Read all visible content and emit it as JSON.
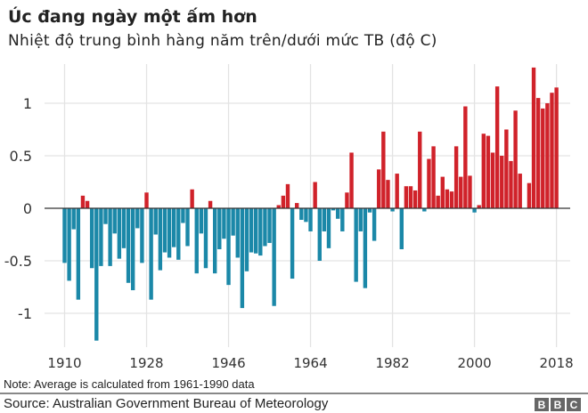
{
  "header": {
    "title": "Úc đang ngày một ấm hơn",
    "subtitle": "Nhiệt độ trung bình hàng năm trên/dưới mức TB (độ C)"
  },
  "footer": {
    "note": "Note: Average is calculated from 1961-1990 data",
    "source": "Source: Australian Government Bureau of Meteorology",
    "logo": [
      "B",
      "B",
      "C"
    ]
  },
  "colors": {
    "positive": "#d0222a",
    "negative": "#1b88a8",
    "grid": "#e3e3e3",
    "zero": "#333333"
  },
  "chart_data": {
    "type": "bar",
    "title": "Úc đang ngày một ấm hơn",
    "subtitle": "Nhiệt độ trung bình hàng năm trên/dưới mức TB (độ C)",
    "xlabel": "",
    "ylabel": "",
    "x_start": 1910,
    "x_end": 2018,
    "ylim": [
      -1.3,
      1.35
    ],
    "grid": true,
    "y_ticks": [
      1,
      0.5,
      0,
      -0.5,
      -1
    ],
    "y_tick_labels": [
      "1",
      "0.5",
      "0",
      "-0.5",
      "-1"
    ],
    "x_ticks": [
      1910,
      1928,
      1946,
      1964,
      1982,
      2000,
      2018
    ],
    "x_tick_labels": [
      "1910",
      "1928",
      "1946",
      "1964",
      "1982",
      "2000",
      "2018"
    ],
    "values": [
      -0.52,
      -0.69,
      -0.2,
      -0.87,
      0.12,
      0.07,
      -0.57,
      -1.26,
      -0.55,
      -0.15,
      -0.55,
      -0.24,
      -0.48,
      -0.38,
      -0.71,
      -0.78,
      -0.19,
      -0.52,
      0.15,
      -0.87,
      -0.25,
      -0.59,
      -0.42,
      -0.47,
      -0.37,
      -0.49,
      -0.14,
      -0.36,
      0.18,
      -0.62,
      -0.24,
      -0.57,
      0.07,
      -0.62,
      -0.39,
      -0.29,
      -0.73,
      -0.26,
      -0.47,
      -0.95,
      -0.6,
      -0.42,
      -0.43,
      -0.45,
      -0.36,
      -0.33,
      -0.93,
      0.03,
      0.12,
      0.23,
      -0.67,
      0.05,
      -0.11,
      -0.13,
      -0.22,
      0.25,
      -0.5,
      -0.22,
      -0.38,
      -0.02,
      -0.1,
      -0.22,
      0.15,
      0.53,
      -0.7,
      -0.22,
      -0.76,
      -0.04,
      -0.31,
      0.37,
      0.73,
      0.27,
      -0.03,
      0.33,
      -0.39,
      0.21,
      0.21,
      0.17,
      0.73,
      -0.03,
      0.47,
      0.59,
      0.12,
      0.3,
      0.18,
      0.16,
      0.59,
      0.3,
      0.97,
      0.31,
      -0.04,
      0.03,
      0.71,
      0.69,
      0.53,
      1.16,
      0.5,
      0.75,
      0.45,
      0.93,
      0.33,
      0,
      0.24,
      1.34,
      1.05,
      0.95,
      1.0,
      1.1,
      1.15
    ]
  }
}
